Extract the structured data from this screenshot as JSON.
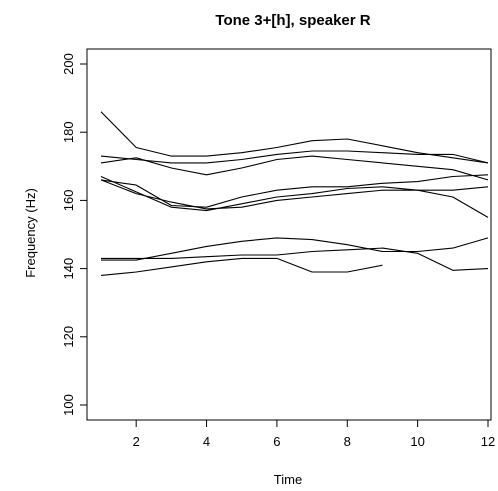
{
  "chart_data": {
    "type": "line",
    "title": "Tone 3+[h], speaker R",
    "xlabel": "Time",
    "ylabel": "Frequency (Hz)",
    "xlim": [
      1,
      12
    ],
    "ylim": [
      100,
      200
    ],
    "xticks": [
      2,
      4,
      6,
      8,
      10,
      12
    ],
    "yticks": [
      100,
      120,
      140,
      160,
      180,
      200
    ],
    "grid": false,
    "legend": "none",
    "line_color": "#000000",
    "series": [
      {
        "x": [
          1,
          2,
          3,
          4,
          5,
          6,
          7,
          8,
          9,
          10,
          11,
          12
        ],
        "values": [
          186,
          175.5,
          173,
          173,
          174,
          175.5,
          177.5,
          178,
          176,
          174,
          172.5,
          171
        ]
      },
      {
        "x": [
          1,
          2,
          3,
          4,
          5,
          6,
          7,
          8,
          9,
          10,
          11,
          12
        ],
        "values": [
          173,
          172,
          171,
          171,
          172,
          173.5,
          174.5,
          174.5,
          174,
          173.5,
          173.5,
          171
        ]
      },
      {
        "x": [
          1,
          2,
          3,
          4,
          5,
          6,
          7,
          8,
          9,
          10,
          11,
          12
        ],
        "values": [
          171,
          172.5,
          169.5,
          167.5,
          169.5,
          172,
          173,
          172,
          171,
          170,
          169,
          166
        ]
      },
      {
        "x": [
          1,
          2,
          3,
          4,
          5,
          6,
          7,
          8,
          9,
          10,
          11,
          12
        ],
        "values": [
          166,
          164.5,
          158.5,
          158,
          161,
          163,
          164,
          164,
          165,
          165.5,
          167,
          167.5
        ]
      },
      {
        "x": [
          1,
          2,
          3,
          4,
          5,
          6,
          7,
          8,
          9,
          10,
          11,
          12
        ],
        "values": [
          167,
          162.5,
          158,
          157,
          159,
          161,
          162,
          163.5,
          164,
          163,
          161,
          155
        ]
      },
      {
        "x": [
          1,
          2,
          3,
          4,
          5,
          6,
          7,
          8,
          9,
          10,
          11,
          12
        ],
        "values": [
          166,
          162,
          159.5,
          157.5,
          158,
          160,
          161,
          162,
          163,
          163,
          163,
          164
        ]
      },
      {
        "x": [
          1,
          2,
          3,
          4,
          5,
          6,
          7,
          8,
          9,
          10,
          11,
          12
        ],
        "values": [
          142.5,
          142.5,
          144.5,
          146.5,
          148,
          149,
          148.5,
          147,
          145,
          145,
          146,
          149
        ]
      },
      {
        "x": [
          1,
          2,
          3,
          4,
          5,
          6,
          7,
          8,
          9,
          10,
          11,
          12
        ],
        "values": [
          143,
          143,
          143,
          143.5,
          144,
          144,
          145,
          145.5,
          146,
          144.5,
          139.5,
          140
        ]
      },
      {
        "x": [
          1,
          2,
          3,
          4,
          5,
          6,
          7,
          8,
          9
        ],
        "values": [
          138,
          139,
          140.5,
          142,
          143,
          143,
          139,
          139,
          141
        ]
      }
    ]
  }
}
